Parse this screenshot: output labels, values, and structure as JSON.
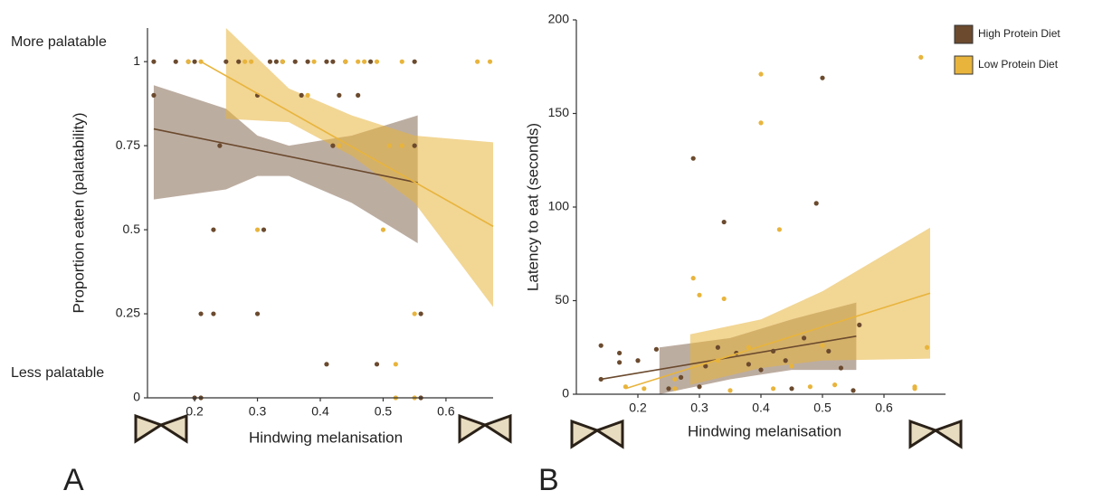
{
  "chart_data": [
    {
      "type": "scatter",
      "panel_label": "A",
      "xlabel": "Hindwing melanisation",
      "ylabel": "Proportion eaten (palatability)",
      "annotations": [
        "More palatable",
        "Less palatable"
      ],
      "xlim": [
        0.125,
        0.675
      ],
      "ylim": [
        0,
        1.1
      ],
      "xticks": [
        0.2,
        0.3,
        0.4,
        0.5,
        0.6
      ],
      "yticks": [
        0,
        0.25,
        0.5,
        0.75,
        1
      ],
      "series": [
        {
          "name": "High Protein Diet",
          "color": "#6b4a2e",
          "x": [
            0.135,
            0.135,
            0.17,
            0.19,
            0.2,
            0.25,
            0.27,
            0.32,
            0.33,
            0.34,
            0.36,
            0.38,
            0.41,
            0.42,
            0.44,
            0.48,
            0.55,
            0.3,
            0.37,
            0.43,
            0.46,
            0.24,
            0.42,
            0.55,
            0.23,
            0.31,
            0.21,
            0.23,
            0.3,
            0.56,
            0.41,
            0.49,
            0.2,
            0.21,
            0.56
          ],
          "y": [
            1,
            0.9,
            1,
            1,
            1,
            1,
            1,
            1,
            1,
            1,
            1,
            1,
            1,
            1,
            1,
            1,
            1,
            0.9,
            0.9,
            0.9,
            0.9,
            0.75,
            0.75,
            0.75,
            0.5,
            0.5,
            0.25,
            0.25,
            0.25,
            0.25,
            0.1,
            0.1,
            0,
            0,
            0
          ],
          "fit_x": [
            0.135,
            0.555
          ],
          "fit_y": [
            0.8,
            0.64
          ],
          "band_x": [
            0.135,
            0.25,
            0.3,
            0.35,
            0.45,
            0.555
          ],
          "band_lower": [
            0.59,
            0.62,
            0.66,
            0.66,
            0.58,
            0.46
          ],
          "band_upper": [
            0.93,
            0.86,
            0.78,
            0.75,
            0.78,
            0.84
          ]
        },
        {
          "name": "Low Protein Diet",
          "color": "#e8b43c",
          "x": [
            0.19,
            0.21,
            0.28,
            0.29,
            0.34,
            0.39,
            0.44,
            0.46,
            0.47,
            0.49,
            0.53,
            0.65,
            0.67,
            0.38,
            0.43,
            0.51,
            0.53,
            0.3,
            0.5,
            0.55,
            0.52,
            0.52,
            0.55
          ],
          "y": [
            1,
            1,
            1,
            1,
            1,
            1,
            1,
            1,
            1,
            1,
            1,
            1,
            1,
            0.9,
            0.75,
            0.75,
            0.75,
            0.5,
            0.5,
            0.25,
            0.1,
            0,
            0
          ],
          "fit_x": [
            0.21,
            0.675
          ],
          "fit_y": [
            1.0,
            0.51
          ],
          "band_x": [
            0.25,
            0.35,
            0.45,
            0.55,
            0.675
          ],
          "band_lower": [
            0.83,
            0.82,
            0.72,
            0.58,
            0.27
          ],
          "band_upper": [
            1.1,
            0.92,
            0.84,
            0.78,
            0.76
          ]
        }
      ]
    },
    {
      "type": "scatter",
      "panel_label": "B",
      "xlabel": "Hindwing melanisation",
      "ylabel": "Latency to eat (seconds)",
      "legend": "top-right",
      "xlim": [
        0.1,
        0.7
      ],
      "ylim": [
        0,
        200
      ],
      "xticks": [
        0.2,
        0.3,
        0.4,
        0.5,
        0.6
      ],
      "yticks": [
        0,
        50,
        100,
        150,
        200
      ],
      "series": [
        {
          "name": "High Protein Diet",
          "color": "#6b4a2e",
          "x": [
            0.14,
            0.14,
            0.17,
            0.17,
            0.2,
            0.23,
            0.25,
            0.27,
            0.29,
            0.31,
            0.34,
            0.33,
            0.36,
            0.38,
            0.4,
            0.42,
            0.44,
            0.47,
            0.49,
            0.5,
            0.51,
            0.53,
            0.55,
            0.56,
            0.3,
            0.45
          ],
          "y": [
            26,
            8,
            22,
            17,
            18,
            24,
            3,
            9,
            126,
            15,
            92,
            25,
            22,
            16,
            13,
            23,
            18,
            30,
            102,
            169,
            23,
            14,
            2,
            37,
            4,
            3
          ],
          "fit_x": [
            0.14,
            0.555
          ],
          "fit_y": [
            8,
            31
          ],
          "band_x": [
            0.235,
            0.35,
            0.45,
            0.555
          ],
          "band_lower": [
            0,
            8,
            13,
            13
          ],
          "band_upper": [
            25,
            30,
            40,
            49
          ]
        },
        {
          "name": "Low Protein Diet",
          "color": "#e8b43c",
          "x": [
            0.18,
            0.21,
            0.26,
            0.29,
            0.3,
            0.34,
            0.4,
            0.4,
            0.43,
            0.33,
            0.38,
            0.45,
            0.48,
            0.5,
            0.52,
            0.35,
            0.66,
            0.67,
            0.65,
            0.65,
            0.42,
            0.26
          ],
          "y": [
            4,
            3,
            3,
            62,
            53,
            51,
            171,
            145,
            88,
            18,
            25,
            15,
            4,
            26,
            5,
            2,
            180,
            25,
            4,
            3,
            3,
            8
          ],
          "fit_x": [
            0.18,
            0.675
          ],
          "fit_y": [
            3,
            54
          ],
          "band_x": [
            0.285,
            0.4,
            0.5,
            0.675
          ],
          "band_lower": [
            5,
            14,
            18,
            19
          ],
          "band_upper": [
            32,
            40,
            55,
            89
          ]
        }
      ]
    }
  ]
}
